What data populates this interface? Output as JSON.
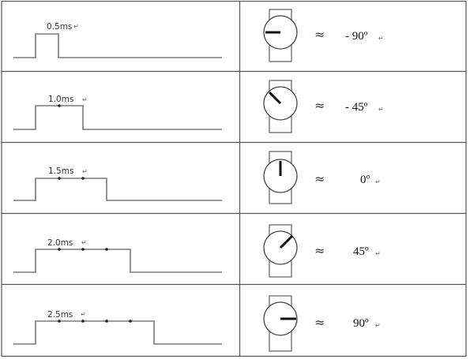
{
  "rows": [
    {
      "pulse": "0.5ms",
      "pulse_mark": "↵",
      "approx": "≈",
      "angle": "- 90º",
      "angle_mark": "↵",
      "angle_deg": -90
    },
    {
      "pulse": "1.0ms",
      "pulse_mark": "↵",
      "approx": "≈",
      "angle": "- 45º",
      "angle_mark": "↵",
      "angle_deg": -45
    },
    {
      "pulse": "1.5ms",
      "pulse_mark": "↵",
      "approx": "≈",
      "angle": "0º",
      "angle_mark": "↵",
      "angle_deg": 0
    },
    {
      "pulse": "2.0ms",
      "pulse_mark": "↵",
      "approx": "≈",
      "angle": "45º",
      "angle_mark": "↵",
      "angle_deg": 45
    },
    {
      "pulse": "2.5ms",
      "pulse_mark": "↵",
      "approx": "≈",
      "angle": "90º",
      "angle_mark": "↵",
      "angle_deg": 90
    }
  ]
}
